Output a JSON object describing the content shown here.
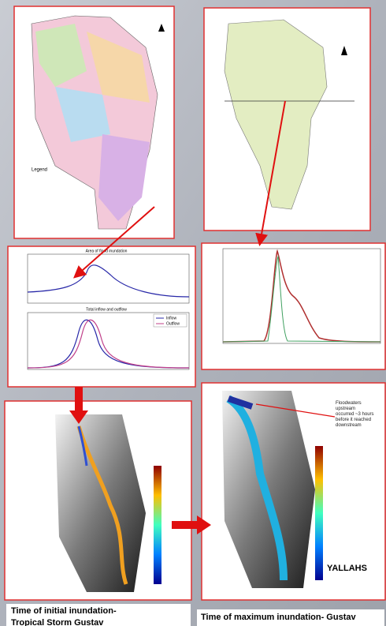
{
  "panels": {
    "hydrograph": {
      "top_title": "Area of flood inundation",
      "bottom_title": "Total inflow and outflow",
      "legend": [
        "Inflow",
        "Outflow"
      ]
    },
    "inundation_max": {
      "annotation": [
        "Floodwaters",
        "upstream",
        "occurred ~3 hours",
        "before it reached",
        "downstream"
      ],
      "place": "YALLAHS"
    }
  },
  "captions": {
    "initial": [
      "Time of initial inundation-",
      "Tropical Storm Gustav"
    ],
    "maximum": [
      "Time of maximum inundation- Gustav"
    ]
  }
}
